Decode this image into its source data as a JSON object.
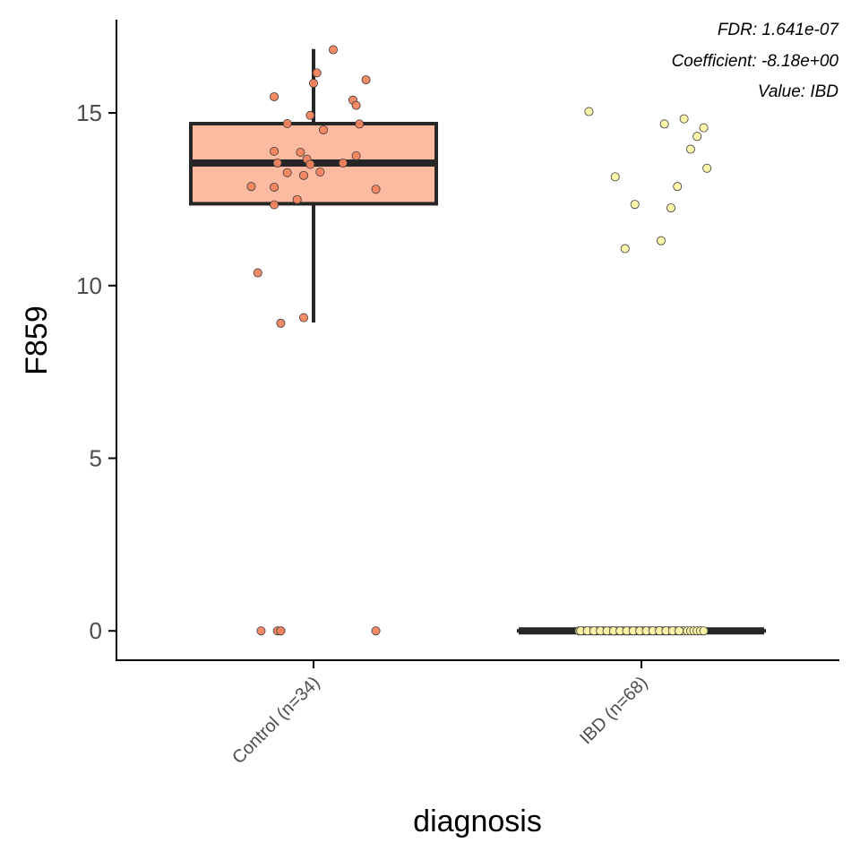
{
  "chart_data": {
    "type": "boxplot",
    "xlabel": "diagnosis",
    "ylabel": "F859",
    "ylim": [
      -0.85,
      17.7
    ],
    "yticks": [
      0,
      5,
      10,
      15
    ],
    "grid": false,
    "legend": "none",
    "categories": [
      "Control (n=34)",
      "IBD (n=68)"
    ],
    "annotations": [
      "FDR: 1.641e-07",
      "Coefficient: -8.18e+00",
      "Value: IBD"
    ],
    "colors": {
      "control_box_fill": "#fcbba1",
      "control_points": "#f4845f",
      "ibd_box_fill": "#fff7bc",
      "ibd_points": "#fff7a8",
      "box_line": "#262626",
      "axis": "#000000"
    },
    "boxes": [
      {
        "category": "Control (n=34)",
        "q1": 12.37,
        "median": 13.55,
        "q3": 14.69,
        "whisker_low": 8.93,
        "whisker_high": 16.85
      },
      {
        "category": "IBD (n=68)",
        "q1": 0.0,
        "median": 0.0,
        "q3": 0.0,
        "whisker_low": 0.0,
        "whisker_high": 0.0
      }
    ],
    "series": [
      {
        "category": "Control (n=34)",
        "points": [
          {
            "x": 0.06,
            "y": 16.83
          },
          {
            "x": 0.01,
            "y": 16.16
          },
          {
            "x": 0.0,
            "y": 15.86
          },
          {
            "x": 0.16,
            "y": 15.96
          },
          {
            "x": -0.12,
            "y": 15.47
          },
          {
            "x": 0.12,
            "y": 15.37
          },
          {
            "x": 0.13,
            "y": 15.22
          },
          {
            "x": -0.01,
            "y": 14.93
          },
          {
            "x": -0.08,
            "y": 14.69
          },
          {
            "x": 0.14,
            "y": 14.68
          },
          {
            "x": 0.03,
            "y": 14.51
          },
          {
            "x": -0.12,
            "y": 13.89
          },
          {
            "x": -0.04,
            "y": 13.86
          },
          {
            "x": -0.02,
            "y": 13.66
          },
          {
            "x": 0.13,
            "y": 13.76
          },
          {
            "x": -0.11,
            "y": 13.55
          },
          {
            "x": -0.01,
            "y": 13.51
          },
          {
            "x": 0.09,
            "y": 13.55
          },
          {
            "x": -0.08,
            "y": 13.27
          },
          {
            "x": 0.02,
            "y": 13.29
          },
          {
            "x": -0.03,
            "y": 13.19
          },
          {
            "x": -0.19,
            "y": 12.87
          },
          {
            "x": -0.12,
            "y": 12.85
          },
          {
            "x": 0.19,
            "y": 12.79
          },
          {
            "x": -0.05,
            "y": 12.49
          },
          {
            "x": -0.12,
            "y": 12.34
          },
          {
            "x": -0.17,
            "y": 10.37
          },
          {
            "x": -0.03,
            "y": 9.07
          },
          {
            "x": -0.1,
            "y": 8.91
          },
          {
            "x": -0.16,
            "y": 0.0
          },
          {
            "x": -0.11,
            "y": 0.0
          },
          {
            "x": -0.1,
            "y": 0.0
          },
          {
            "x": -0.1,
            "y": 0.0
          },
          {
            "x": 0.19,
            "y": 0.0
          }
        ]
      },
      {
        "category": "IBD (n=68)",
        "points": [
          {
            "x": -0.16,
            "y": 15.04
          },
          {
            "x": 0.13,
            "y": 14.83
          },
          {
            "x": 0.07,
            "y": 14.68
          },
          {
            "x": 0.19,
            "y": 14.57
          },
          {
            "x": 0.17,
            "y": 14.32
          },
          {
            "x": 0.15,
            "y": 13.95
          },
          {
            "x": 0.2,
            "y": 13.4
          },
          {
            "x": -0.08,
            "y": 13.15
          },
          {
            "x": 0.11,
            "y": 12.87
          },
          {
            "x": -0.02,
            "y": 12.35
          },
          {
            "x": 0.09,
            "y": 12.25
          },
          {
            "x": 0.06,
            "y": 11.3
          },
          {
            "x": -0.05,
            "y": 11.07
          },
          {
            "x": -0.19,
            "y": 0.0
          },
          {
            "x": -0.18,
            "y": 0.0
          },
          {
            "x": -0.17,
            "y": 0.0
          },
          {
            "x": -0.16,
            "y": 0.0
          },
          {
            "x": -0.15,
            "y": 0.0
          },
          {
            "x": -0.14,
            "y": 0.0
          },
          {
            "x": -0.13,
            "y": 0.0
          },
          {
            "x": -0.12,
            "y": 0.0
          },
          {
            "x": -0.11,
            "y": 0.0
          },
          {
            "x": -0.1,
            "y": 0.0
          },
          {
            "x": -0.09,
            "y": 0.0
          },
          {
            "x": -0.08,
            "y": 0.0
          },
          {
            "x": -0.07,
            "y": 0.0
          },
          {
            "x": -0.06,
            "y": 0.0
          },
          {
            "x": -0.05,
            "y": 0.0
          },
          {
            "x": -0.04,
            "y": 0.0
          },
          {
            "x": -0.03,
            "y": 0.0
          },
          {
            "x": -0.02,
            "y": 0.0
          },
          {
            "x": -0.01,
            "y": 0.0
          },
          {
            "x": 0.0,
            "y": 0.0
          },
          {
            "x": 0.01,
            "y": 0.0
          },
          {
            "x": 0.02,
            "y": 0.0
          },
          {
            "x": 0.03,
            "y": 0.0
          },
          {
            "x": 0.04,
            "y": 0.0
          },
          {
            "x": 0.05,
            "y": 0.0
          },
          {
            "x": 0.06,
            "y": 0.0
          },
          {
            "x": 0.07,
            "y": 0.0
          },
          {
            "x": 0.08,
            "y": 0.0
          },
          {
            "x": 0.09,
            "y": 0.0
          },
          {
            "x": 0.1,
            "y": 0.0
          },
          {
            "x": 0.11,
            "y": 0.0
          },
          {
            "x": 0.12,
            "y": 0.0
          },
          {
            "x": 0.13,
            "y": 0.0
          },
          {
            "x": 0.14,
            "y": 0.0
          },
          {
            "x": 0.15,
            "y": 0.0
          },
          {
            "x": 0.16,
            "y": 0.0
          },
          {
            "x": 0.17,
            "y": 0.0
          },
          {
            "x": 0.18,
            "y": 0.0
          },
          {
            "x": 0.19,
            "y": 0.0
          },
          {
            "x": -0.185,
            "y": 0.0
          },
          {
            "x": -0.165,
            "y": 0.0
          },
          {
            "x": -0.145,
            "y": 0.0
          },
          {
            "x": -0.125,
            "y": 0.0
          },
          {
            "x": -0.105,
            "y": 0.0
          },
          {
            "x": -0.085,
            "y": 0.0
          },
          {
            "x": -0.065,
            "y": 0.0
          },
          {
            "x": -0.045,
            "y": 0.0
          },
          {
            "x": -0.025,
            "y": 0.0
          },
          {
            "x": -0.005,
            "y": 0.0
          },
          {
            "x": 0.015,
            "y": 0.0
          },
          {
            "x": 0.035,
            "y": 0.0
          },
          {
            "x": 0.055,
            "y": 0.0
          },
          {
            "x": 0.075,
            "y": 0.0
          },
          {
            "x": 0.095,
            "y": 0.0
          },
          {
            "x": 0.115,
            "y": 0.0
          }
        ]
      }
    ]
  }
}
